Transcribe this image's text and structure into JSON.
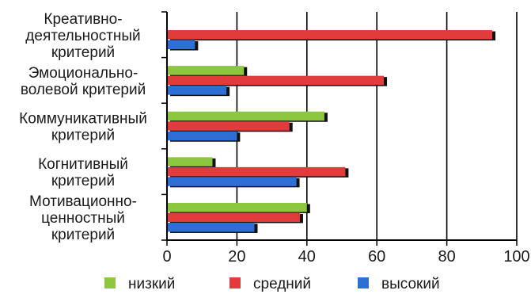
{
  "chart_data": {
    "type": "bar",
    "orientation": "horizontal",
    "categories": [
      [
        "Креативно-",
        "деятельностный",
        "критерий"
      ],
      [
        "Эмоционально-",
        "волевой критерий"
      ],
      [
        "Коммуникативный",
        "критерий"
      ],
      [
        "Когнитивный",
        "критерий"
      ],
      [
        "Мотивационно-",
        "ценностный",
        "критерий"
      ]
    ],
    "series": [
      {
        "name": "низкий",
        "color": "#8dc63f",
        "values": [
          0,
          22,
          45,
          13,
          40
        ]
      },
      {
        "name": "средний",
        "color": "#e23b3b",
        "values": [
          93,
          62,
          35,
          51,
          38
        ]
      },
      {
        "name": "высокий",
        "color": "#2e6fd6",
        "values": [
          8,
          17,
          20,
          37,
          25
        ]
      }
    ],
    "xlim": [
      0,
      100
    ],
    "xticks": [
      "0",
      "20",
      "40",
      "60",
      "80",
      "100"
    ],
    "grid": "vertical",
    "legend_position": "bottom",
    "title": "",
    "xlabel": "",
    "ylabel": ""
  }
}
